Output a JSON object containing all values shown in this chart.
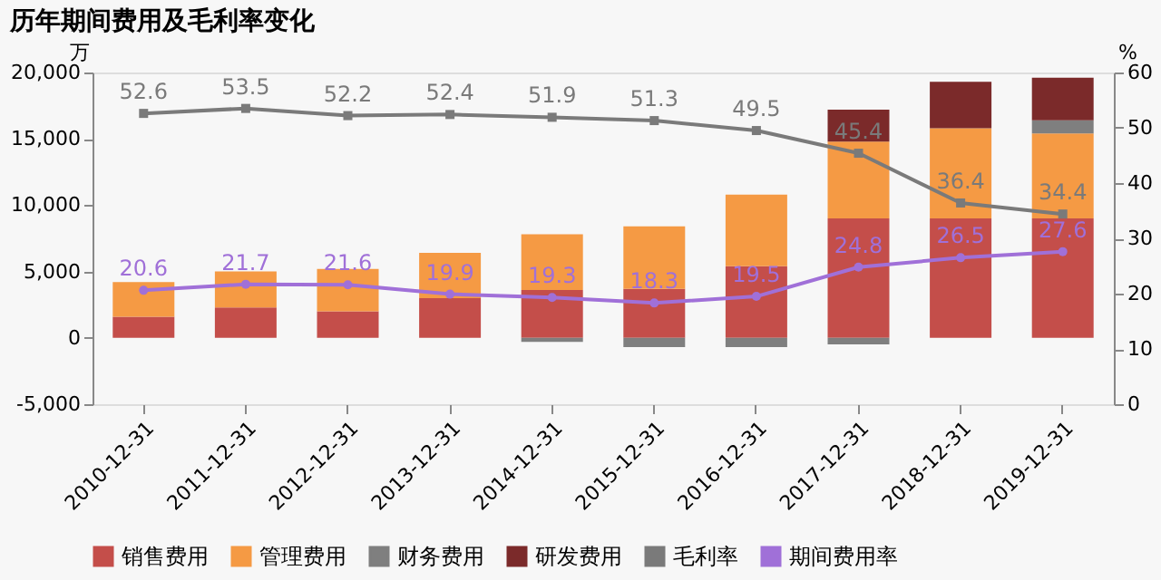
{
  "chart_data": {
    "type": "bar",
    "stacked": true,
    "title": "历年期间费用及毛利率变化",
    "ylabel": "万",
    "y2label": "%",
    "categories": [
      "2010-12-31",
      "2011-12-31",
      "2012-12-31",
      "2013-12-31",
      "2014-12-31",
      "2015-12-31",
      "2016-12-31",
      "2017-12-31",
      "2018-12-31",
      "2019-12-31"
    ],
    "ylim": [
      -5000,
      20000
    ],
    "yticks": [
      {
        "value": -5000,
        "label": "-5,000"
      },
      0,
      {
        "value": 5000,
        "label": "5,000"
      },
      {
        "value": 10000,
        "label": "10,000"
      },
      {
        "value": 15000,
        "label": "15,000"
      },
      {
        "value": 20000,
        "label": "20,000"
      }
    ],
    "y2lim": [
      0,
      60
    ],
    "y2ticks": [
      0,
      10,
      20,
      30,
      40,
      50,
      60
    ],
    "grid": false,
    "legend": "bottom",
    "series": [
      {
        "name": "销售费用",
        "color": "#c44e4a",
        "values": [
          1600,
          2300,
          2000,
          3000,
          3600,
          3700,
          5400,
          9000,
          9000,
          9000
        ]
      },
      {
        "name": "管理费用",
        "color": "#f59a44",
        "values": [
          2600,
          2700,
          3200,
          3400,
          4200,
          4700,
          5400,
          5800,
          6800,
          6400
        ]
      },
      {
        "name": "财务费用",
        "color": "#7f7f7f",
        "values": [
          0,
          0,
          0,
          0,
          -300,
          -700,
          -700,
          -500,
          0,
          1000
        ]
      },
      {
        "name": "研发费用",
        "color": "#7b2a2a",
        "values": [
          0,
          0,
          0,
          0,
          0,
          0,
          0,
          2400,
          3500,
          3200
        ]
      },
      {
        "name": "毛利率",
        "type": "line",
        "axis": "y2",
        "color": "#7a7a7a",
        "marker": "square",
        "data_labels": true,
        "values": [
          52.6,
          53.5,
          52.2,
          52.4,
          51.9,
          51.3,
          49.5,
          45.4,
          36.4,
          34.4
        ]
      },
      {
        "name": "期间费用率",
        "type": "line",
        "axis": "y2",
        "color": "#a070d8",
        "marker": "circle",
        "data_labels": true,
        "values": [
          20.6,
          21.7,
          21.6,
          19.9,
          19.3,
          18.3,
          19.5,
          24.8,
          26.5,
          27.6
        ]
      }
    ]
  }
}
